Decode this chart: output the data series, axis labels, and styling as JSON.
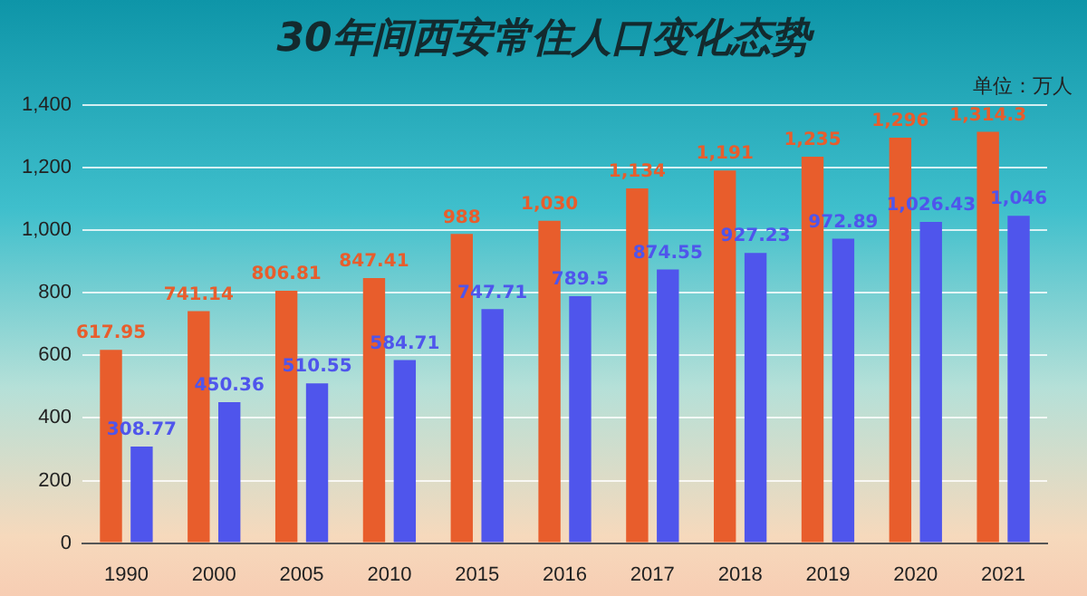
{
  "chart_data": {
    "type": "bar",
    "title": "30年间西安常住人口变化态势",
    "annotations": [
      "单位：万人"
    ],
    "categories": [
      "1990",
      "2000",
      "2005",
      "2010",
      "2015",
      "2016",
      "2017",
      "2018",
      "2019",
      "2020",
      "2021"
    ],
    "series": [
      {
        "color": "#e85d2c",
        "values": [
          617.95,
          741.14,
          806.81,
          847.41,
          988,
          1030,
          1134,
          1191,
          1235,
          1296,
          1314.3
        ],
        "value_labels": [
          "617.95",
          "741.14",
          "806.81",
          "847.41",
          "988",
          "1,030",
          "1,134",
          "1,191",
          "1,235",
          "1,296",
          "1,314.3"
        ]
      },
      {
        "color": "#4f55ec",
        "values": [
          308.77,
          450.36,
          510.55,
          584.71,
          747.71,
          789.5,
          874.55,
          927.23,
          972.89,
          1026.43,
          1046
        ],
        "value_labels": [
          "308.77",
          "450.36",
          "510.55",
          "584.71",
          "747.71",
          "789.5",
          "874.55",
          "927.23",
          "972.89",
          "1,026.43",
          "1,046"
        ]
      }
    ],
    "ylim": [
      0,
      1400
    ],
    "yticks": [
      0,
      200,
      400,
      600,
      800,
      {
        "value": 1000,
        "label": "1,000"
      },
      {
        "value": 1200,
        "label": "1,200"
      },
      {
        "value": 1400,
        "label": "1,400"
      }
    ],
    "grid": "y",
    "legend": false
  }
}
